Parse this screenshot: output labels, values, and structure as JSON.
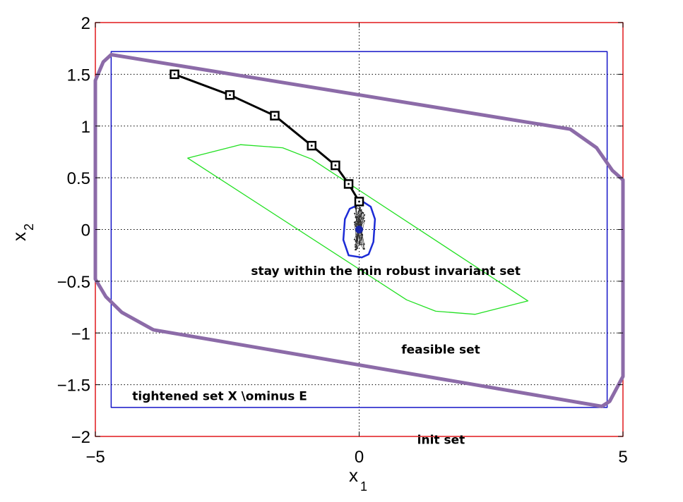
{
  "chart_data": {
    "type": "line",
    "xlabel": "x",
    "xlabel_sub": "1",
    "ylabel": "x",
    "ylabel_sub": "2",
    "xlim": [
      -5,
      5
    ],
    "ylim": [
      -2,
      2
    ],
    "xticks": [
      -5,
      0,
      5
    ],
    "xtick_labels": [
      "−5",
      "0",
      "5"
    ],
    "yticks": [
      -2,
      -1.5,
      -1,
      -0.5,
      0,
      0.5,
      1,
      1.5,
      2
    ],
    "ytick_labels": [
      "−2",
      "−1.5",
      "−1",
      "−0.5",
      "0",
      "0.5",
      "1",
      "1.5",
      "2"
    ],
    "grid": "dotted lines at x = 0 and y = −1.5 to 1.5 (0.5 steps)",
    "colors": {
      "init_set": "#e0191b",
      "tightened_set": "#1414c8",
      "feasible_set": "#8c6ba8",
      "green_region": "#22e022",
      "robust_invariant_set": "#1c2bd6",
      "trajectory": "#000000",
      "origin_marker": "#1a26a8"
    },
    "annotations": [
      {
        "text": "stay within the min robust invariant set",
        "x": -2.05,
        "y": -0.44
      },
      {
        "text": "feasible set",
        "x": 0.8,
        "y": -1.2
      },
      {
        "text": "tightened set X \\ominus E",
        "x": -4.3,
        "y": -1.65
      },
      {
        "text": "init set",
        "x": 1.1,
        "y": -2.07
      }
    ],
    "series": [
      {
        "key": "init_set",
        "kind": "polygon",
        "points": [
          [
            -5,
            -2
          ],
          [
            5,
            -2
          ],
          [
            5,
            2
          ],
          [
            -5,
            2
          ]
        ]
      },
      {
        "key": "tightened_set",
        "kind": "polygon",
        "points": [
          [
            -4.7,
            -1.72
          ],
          [
            4.7,
            -1.72
          ],
          [
            4.7,
            1.72
          ],
          [
            -4.7,
            1.72
          ]
        ]
      },
      {
        "key": "feasible_set",
        "kind": "polygon",
        "points": [
          [
            -4.7,
            1.69
          ],
          [
            4.0,
            0.97
          ],
          [
            4.5,
            0.79
          ],
          [
            4.8,
            0.57
          ],
          [
            5.0,
            0.48
          ],
          [
            5.0,
            -1.42
          ],
          [
            4.75,
            -1.66
          ],
          [
            4.6,
            -1.71
          ],
          [
            -3.9,
            -0.97
          ],
          [
            -4.5,
            -0.8
          ],
          [
            -4.8,
            -0.65
          ],
          [
            -5.0,
            -0.48
          ],
          [
            -5.0,
            1.44
          ],
          [
            -4.85,
            1.62
          ]
        ]
      },
      {
        "key": "green_region",
        "kind": "polygon",
        "points": [
          [
            -3.25,
            0.69
          ],
          [
            -2.25,
            0.82
          ],
          [
            -1.45,
            0.79
          ],
          [
            -0.9,
            0.68
          ],
          [
            3.2,
            -0.69
          ],
          [
            2.2,
            -0.82
          ],
          [
            1.45,
            -0.79
          ],
          [
            0.9,
            -0.68
          ]
        ]
      },
      {
        "key": "robust_invariant_set",
        "kind": "polygon",
        "points": [
          [
            -0.05,
            0.23
          ],
          [
            0.07,
            0.27
          ],
          [
            0.22,
            0.22
          ],
          [
            0.3,
            0.1
          ],
          [
            0.27,
            -0.12
          ],
          [
            0.18,
            -0.24
          ],
          [
            0.05,
            -0.27
          ],
          [
            -0.2,
            -0.25
          ],
          [
            -0.3,
            -0.1
          ],
          [
            -0.27,
            0.1
          ],
          [
            -0.18,
            0.2
          ]
        ]
      },
      {
        "key": "trajectory",
        "kind": "line",
        "x": [
          -3.5,
          -2.45,
          -1.6,
          -0.9,
          -0.45,
          -0.2,
          0.0
        ],
        "y": [
          1.5,
          1.3,
          1.1,
          0.81,
          0.62,
          0.44,
          0.27
        ]
      }
    ]
  }
}
